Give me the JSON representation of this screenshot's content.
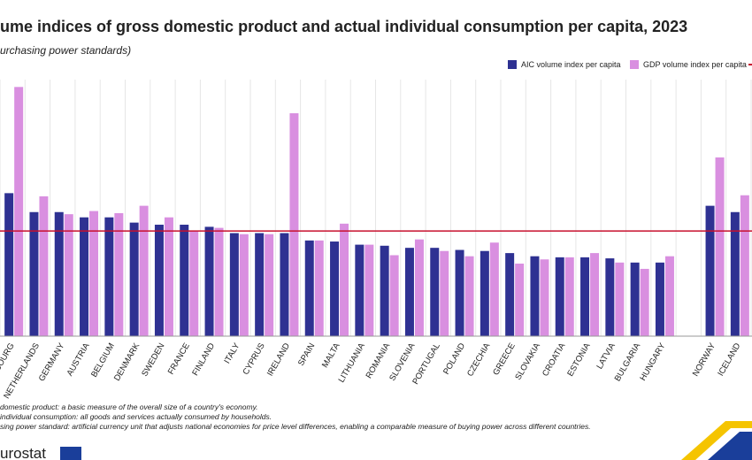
{
  "chart_data": {
    "type": "bar",
    "title": "ume indices of gross domestic product and actual individual consumption per capita, 2023",
    "subtitle": "urchasing power standards)",
    "categories": [
      "MBOURG",
      "NETHERLANDS",
      "GERMANY",
      "AUSTRIA",
      "BELGIUM",
      "DENMARK",
      "SWEDEN",
      "FRANCE",
      "FINLAND",
      "ITALY",
      "CYPRUS",
      "IRELAND",
      "SPAIN",
      "MALTA",
      "LITHUANIA",
      "ROMANIA",
      "SLOVENIA",
      "PORTUGAL",
      "POLAND",
      "CZECHIA",
      "GREECE",
      "SLOVAKIA",
      "CROATIA",
      "ESTONIA",
      "LATVIA",
      "BULGARIA",
      "HUNGARY",
      null,
      "NORWAY",
      "ICELAND"
    ],
    "series": [
      {
        "name": "AIC volume index per capita",
        "color": "#2e3192",
        "values": [
          136,
          118,
          118,
          113,
          113,
          108,
          106,
          106,
          104,
          98,
          98,
          98,
          91,
          90,
          87,
          86,
          84,
          84,
          82,
          81,
          79,
          76,
          75,
          75,
          74,
          70,
          70,
          null,
          124,
          118
        ]
      },
      {
        "name": "GDP volume index per capita",
        "color": "#d98fe0",
        "values": [
          237,
          133,
          116,
          119,
          117,
          124,
          113,
          100,
          103,
          97,
          97,
          212,
          91,
          107,
          87,
          77,
          92,
          81,
          76,
          89,
          69,
          73,
          75,
          79,
          70,
          64,
          76,
          null,
          170,
          134
        ]
      }
    ],
    "reference_line": {
      "value": 100,
      "color": "#c8102e"
    },
    "ylim": [
      0,
      244
    ],
    "footnotes": [
      "domestic product: a basic measure of the overall size of a country's economy.",
      "individual consumption: all goods and services actually consumed by households.",
      "sing power standard: artificial currency unit that adjusts national economies for price level differences, enabling a comparable measure of buying power across different countries."
    ],
    "logo": "urostat"
  }
}
